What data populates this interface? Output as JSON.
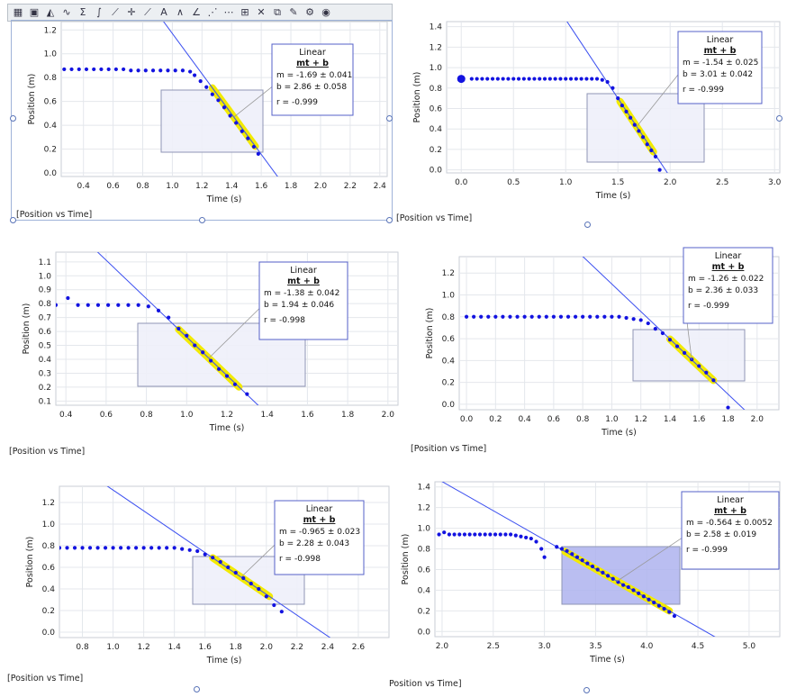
{
  "toolbar": {
    "icons": [
      "table-view-icon",
      "display-options-icon",
      "fill-icon",
      "curve-fit-icon",
      "sigma-statistics-icon",
      "integral-area-icon",
      "linear-fit-icon",
      "examine-crosshair-icon",
      "tangent-icon",
      "annotation-text-icon",
      "derivative-icon",
      "slope-icon",
      "interpolate-icon",
      "connect-points-icon",
      "zoom-icon",
      "delete-icon",
      "copy-icon",
      "pin-icon",
      "gear-icon",
      "eye-icon"
    ]
  },
  "chart_data": [
    {
      "type": "scatter",
      "caption": "[Position vs Time]",
      "xlabel": "Time (s)",
      "ylabel": "Position (m)",
      "xlim": [
        0.25,
        2.45
      ],
      "ylim": [
        -0.03,
        1.27
      ],
      "xticks": [
        "0.4",
        "0.6",
        "0.8",
        "1.0",
        "1.2",
        "1.4",
        "1.6",
        "1.8",
        "2.0",
        "2.2",
        "2.4"
      ],
      "yticks": [
        "0.0",
        "0.2",
        "0.4",
        "0.6",
        "0.8",
        "1.0",
        "1.2"
      ],
      "points": [
        [
          0.27,
          0.87
        ],
        [
          0.32,
          0.87
        ],
        [
          0.37,
          0.87
        ],
        [
          0.42,
          0.87
        ],
        [
          0.47,
          0.87
        ],
        [
          0.52,
          0.87
        ],
        [
          0.57,
          0.87
        ],
        [
          0.62,
          0.87
        ],
        [
          0.67,
          0.87
        ],
        [
          0.72,
          0.86
        ],
        [
          0.77,
          0.86
        ],
        [
          0.82,
          0.86
        ],
        [
          0.87,
          0.86
        ],
        [
          0.92,
          0.86
        ],
        [
          0.97,
          0.86
        ],
        [
          1.02,
          0.86
        ],
        [
          1.07,
          0.86
        ],
        [
          1.12,
          0.85
        ],
        [
          1.15,
          0.82
        ],
        [
          1.19,
          0.77
        ],
        [
          1.23,
          0.72
        ],
        [
          1.27,
          0.66
        ],
        [
          1.31,
          0.61
        ],
        [
          1.35,
          0.55
        ],
        [
          1.39,
          0.48
        ],
        [
          1.43,
          0.42
        ],
        [
          1.47,
          0.35
        ],
        [
          1.51,
          0.29
        ],
        [
          1.55,
          0.22
        ],
        [
          1.58,
          0.16
        ]
      ],
      "fit": {
        "m": -1.69,
        "b": 2.86
      },
      "fit_range": [
        1.27,
        1.56
      ],
      "box": {
        "title": "Linear",
        "eq": "mt + b",
        "m": "m = -1.69 ± 0.041",
        "b": "b  = 2.86  ± 0.058",
        "r": "r = -0.999"
      }
    },
    {
      "type": "scatter",
      "caption": "[Position vs Time]",
      "xlabel": "Time (s)",
      "ylabel": "Position (m)",
      "xlim": [
        -0.14,
        3.05
      ],
      "ylim": [
        -0.03,
        1.45
      ],
      "xticks": [
        "0.0",
        "0.5",
        "1.0",
        "1.5",
        "2.0",
        "2.5",
        "3.0"
      ],
      "yticks": [
        "0.0",
        "0.2",
        "0.4",
        "0.6",
        "0.8",
        "1.0",
        "1.2",
        "1.4"
      ],
      "points": [
        [
          0.0,
          0.89
        ],
        [
          0.1,
          0.89
        ],
        [
          0.15,
          0.89
        ],
        [
          0.2,
          0.89
        ],
        [
          0.25,
          0.89
        ],
        [
          0.3,
          0.89
        ],
        [
          0.35,
          0.89
        ],
        [
          0.4,
          0.89
        ],
        [
          0.45,
          0.89
        ],
        [
          0.5,
          0.89
        ],
        [
          0.55,
          0.89
        ],
        [
          0.6,
          0.89
        ],
        [
          0.65,
          0.89
        ],
        [
          0.7,
          0.89
        ],
        [
          0.75,
          0.89
        ],
        [
          0.8,
          0.89
        ],
        [
          0.85,
          0.89
        ],
        [
          0.9,
          0.89
        ],
        [
          0.95,
          0.89
        ],
        [
          1.0,
          0.89
        ],
        [
          1.05,
          0.89
        ],
        [
          1.1,
          0.89
        ],
        [
          1.15,
          0.89
        ],
        [
          1.2,
          0.89
        ],
        [
          1.25,
          0.89
        ],
        [
          1.3,
          0.89
        ],
        [
          1.35,
          0.88
        ],
        [
          1.4,
          0.86
        ],
        [
          1.45,
          0.8
        ],
        [
          1.5,
          0.7
        ],
        [
          1.54,
          0.63
        ],
        [
          1.58,
          0.57
        ],
        [
          1.62,
          0.51
        ],
        [
          1.66,
          0.44
        ],
        [
          1.7,
          0.38
        ],
        [
          1.74,
          0.32
        ],
        [
          1.78,
          0.25
        ],
        [
          1.82,
          0.19
        ],
        [
          1.86,
          0.13
        ],
        [
          1.9,
          0.0
        ]
      ],
      "fit": {
        "m": -1.54,
        "b": 3.01
      },
      "fit_range": [
        1.52,
        1.84
      ],
      "box": {
        "title": "Linear",
        "eq": "mt + b",
        "m": "m = -1.54 ± 0.025",
        "b": "b  = 3.01  ± 0.042",
        "r": "r = -0.999"
      }
    },
    {
      "type": "scatter",
      "caption": "[Position vs Time]",
      "xlabel": "Time (s)",
      "ylabel": "Position (m)",
      "xlim": [
        0.35,
        2.05
      ],
      "ylim": [
        0.07,
        1.17
      ],
      "xticks": [
        "0.4",
        "0.6",
        "0.8",
        "1.0",
        "1.2",
        "1.4",
        "1.6",
        "1.8",
        "2.0"
      ],
      "yticks": [
        "0.1",
        "0.2",
        "0.3",
        "0.4",
        "0.5",
        "0.6",
        "0.7",
        "0.8",
        "0.9",
        "1.0",
        "1.1"
      ],
      "points": [
        [
          0.35,
          0.79
        ],
        [
          0.41,
          0.84
        ],
        [
          0.46,
          0.79
        ],
        [
          0.51,
          0.79
        ],
        [
          0.56,
          0.79
        ],
        [
          0.61,
          0.79
        ],
        [
          0.66,
          0.79
        ],
        [
          0.71,
          0.79
        ],
        [
          0.76,
          0.79
        ],
        [
          0.81,
          0.78
        ],
        [
          0.86,
          0.75
        ],
        [
          0.91,
          0.7
        ],
        [
          0.96,
          0.62
        ],
        [
          1.0,
          0.57
        ],
        [
          1.04,
          0.5
        ],
        [
          1.08,
          0.45
        ],
        [
          1.12,
          0.39
        ],
        [
          1.16,
          0.33
        ],
        [
          1.2,
          0.28
        ],
        [
          1.24,
          0.22
        ],
        [
          1.3,
          0.15
        ]
      ],
      "fit": {
        "m": -1.38,
        "b": 1.94
      },
      "fit_range": [
        0.96,
        1.26
      ],
      "box": {
        "title": "Linear",
        "eq": "mt + b",
        "m": "m = -1.38 ± 0.042",
        "b": "b  = 1.94  ± 0.046",
        "r": "r = -0.998"
      }
    },
    {
      "type": "scatter",
      "caption": "[Position vs Time]",
      "xlabel": "Time (s)",
      "ylabel": "Position (m)",
      "xlim": [
        -0.05,
        2.15
      ],
      "ylim": [
        -0.05,
        1.35
      ],
      "xticks": [
        "0.0",
        "0.2",
        "0.4",
        "0.6",
        "0.8",
        "1.0",
        "1.2",
        "1.4",
        "1.6",
        "1.8",
        "2.0"
      ],
      "yticks": [
        "0.0",
        "0.2",
        "0.4",
        "0.6",
        "0.8",
        "1.0",
        "1.2"
      ],
      "points": [
        [
          0.0,
          0.8
        ],
        [
          0.05,
          0.8
        ],
        [
          0.1,
          0.8
        ],
        [
          0.15,
          0.8
        ],
        [
          0.2,
          0.8
        ],
        [
          0.25,
          0.8
        ],
        [
          0.3,
          0.8
        ],
        [
          0.35,
          0.8
        ],
        [
          0.4,
          0.8
        ],
        [
          0.45,
          0.8
        ],
        [
          0.5,
          0.8
        ],
        [
          0.55,
          0.8
        ],
        [
          0.6,
          0.8
        ],
        [
          0.65,
          0.8
        ],
        [
          0.7,
          0.8
        ],
        [
          0.75,
          0.8
        ],
        [
          0.8,
          0.8
        ],
        [
          0.85,
          0.8
        ],
        [
          0.9,
          0.8
        ],
        [
          0.95,
          0.8
        ],
        [
          1.0,
          0.8
        ],
        [
          1.05,
          0.8
        ],
        [
          1.1,
          0.79
        ],
        [
          1.15,
          0.78
        ],
        [
          1.2,
          0.77
        ],
        [
          1.25,
          0.74
        ],
        [
          1.3,
          0.69
        ],
        [
          1.35,
          0.65
        ],
        [
          1.4,
          0.59
        ],
        [
          1.45,
          0.53
        ],
        [
          1.5,
          0.47
        ],
        [
          1.55,
          0.41
        ],
        [
          1.6,
          0.35
        ],
        [
          1.65,
          0.29
        ],
        [
          1.7,
          0.22
        ],
        [
          1.8,
          -0.03
        ]
      ],
      "fit": {
        "m": -1.26,
        "b": 2.36
      },
      "fit_range": [
        1.4,
        1.7
      ],
      "box": {
        "title": "Linear",
        "eq": "mt + b",
        "m": "m = -1.26 ± 0.022",
        "b": "b  = 2.36  ± 0.033",
        "r": "r = -0.999"
      }
    },
    {
      "type": "scatter",
      "caption": "[Position vs Time]",
      "xlabel": "Time (s)",
      "ylabel": "Position (m)",
      "xlim": [
        0.65,
        2.8
      ],
      "ylim": [
        -0.05,
        1.35
      ],
      "xticks": [
        "0.8",
        "1.0",
        "1.2",
        "1.4",
        "1.6",
        "1.8",
        "2.0",
        "2.2",
        "2.4",
        "2.6"
      ],
      "yticks": [
        "0.0",
        "0.2",
        "0.4",
        "0.6",
        "0.8",
        "1.0",
        "1.2"
      ],
      "points": [
        [
          0.65,
          0.78
        ],
        [
          0.7,
          0.78
        ],
        [
          0.75,
          0.78
        ],
        [
          0.8,
          0.78
        ],
        [
          0.85,
          0.78
        ],
        [
          0.9,
          0.78
        ],
        [
          0.95,
          0.78
        ],
        [
          1.0,
          0.78
        ],
        [
          1.05,
          0.78
        ],
        [
          1.1,
          0.78
        ],
        [
          1.15,
          0.78
        ],
        [
          1.2,
          0.78
        ],
        [
          1.25,
          0.78
        ],
        [
          1.3,
          0.78
        ],
        [
          1.35,
          0.78
        ],
        [
          1.4,
          0.78
        ],
        [
          1.45,
          0.77
        ],
        [
          1.5,
          0.76
        ],
        [
          1.55,
          0.75
        ],
        [
          1.6,
          0.72
        ],
        [
          1.65,
          0.69
        ],
        [
          1.7,
          0.65
        ],
        [
          1.75,
          0.6
        ],
        [
          1.8,
          0.55
        ],
        [
          1.85,
          0.5
        ],
        [
          1.9,
          0.45
        ],
        [
          1.95,
          0.4
        ],
        [
          2.0,
          0.33
        ],
        [
          2.05,
          0.25
        ],
        [
          2.1,
          0.19
        ]
      ],
      "fit": {
        "m": -0.965,
        "b": 2.28
      },
      "fit_range": [
        1.65,
        2.02
      ],
      "box": {
        "title": "Linear",
        "eq": "mt + b",
        "m": "m = -0.965 ± 0.023",
        "b": "b  = 2.28    ± 0.043",
        "r": "r = -0.998"
      }
    },
    {
      "type": "scatter",
      "caption": "Position vs Time]",
      "xlabel": "Time (s)",
      "ylabel": "Position (m)",
      "xlim": [
        1.93,
        5.3
      ],
      "ylim": [
        -0.05,
        1.45
      ],
      "xticks": [
        "2.0",
        "2.5",
        "3.0",
        "3.5",
        "4.0",
        "4.5",
        "5.0"
      ],
      "yticks": [
        "0.0",
        "0.2",
        "0.4",
        "0.6",
        "0.8",
        "1.0",
        "1.2",
        "1.4"
      ],
      "points": [
        [
          1.97,
          0.94
        ],
        [
          2.02,
          0.96
        ],
        [
          2.07,
          0.94
        ],
        [
          2.12,
          0.94
        ],
        [
          2.17,
          0.94
        ],
        [
          2.22,
          0.94
        ],
        [
          2.27,
          0.94
        ],
        [
          2.32,
          0.94
        ],
        [
          2.37,
          0.94
        ],
        [
          2.42,
          0.94
        ],
        [
          2.47,
          0.94
        ],
        [
          2.52,
          0.94
        ],
        [
          2.57,
          0.94
        ],
        [
          2.62,
          0.94
        ],
        [
          2.67,
          0.94
        ],
        [
          2.72,
          0.93
        ],
        [
          2.77,
          0.92
        ],
        [
          2.82,
          0.91
        ],
        [
          2.87,
          0.9
        ],
        [
          2.92,
          0.87
        ],
        [
          2.97,
          0.8
        ],
        [
          3.0,
          0.72
        ],
        [
          3.12,
          0.82
        ],
        [
          3.17,
          0.8
        ],
        [
          3.22,
          0.78
        ],
        [
          3.27,
          0.75
        ],
        [
          3.32,
          0.72
        ],
        [
          3.37,
          0.69
        ],
        [
          3.42,
          0.66
        ],
        [
          3.47,
          0.63
        ],
        [
          3.52,
          0.6
        ],
        [
          3.57,
          0.57
        ],
        [
          3.62,
          0.54
        ],
        [
          3.67,
          0.51
        ],
        [
          3.72,
          0.48
        ],
        [
          3.77,
          0.45
        ],
        [
          3.82,
          0.43
        ],
        [
          3.87,
          0.4
        ],
        [
          3.92,
          0.37
        ],
        [
          3.97,
          0.34
        ],
        [
          4.02,
          0.31
        ],
        [
          4.07,
          0.28
        ],
        [
          4.12,
          0.25
        ],
        [
          4.17,
          0.22
        ],
        [
          4.22,
          0.19
        ],
        [
          4.27,
          0.15
        ]
      ],
      "fit": {
        "m": -0.564,
        "b": 2.58
      },
      "fit_range": [
        3.2,
        4.22
      ],
      "box": {
        "title": "Linear",
        "eq": "mt + b",
        "m": "m = -0.564 ± 0.0052",
        "b": "b  = 2.58    ± 0.019",
        "r": "r = -0.999"
      }
    }
  ]
}
